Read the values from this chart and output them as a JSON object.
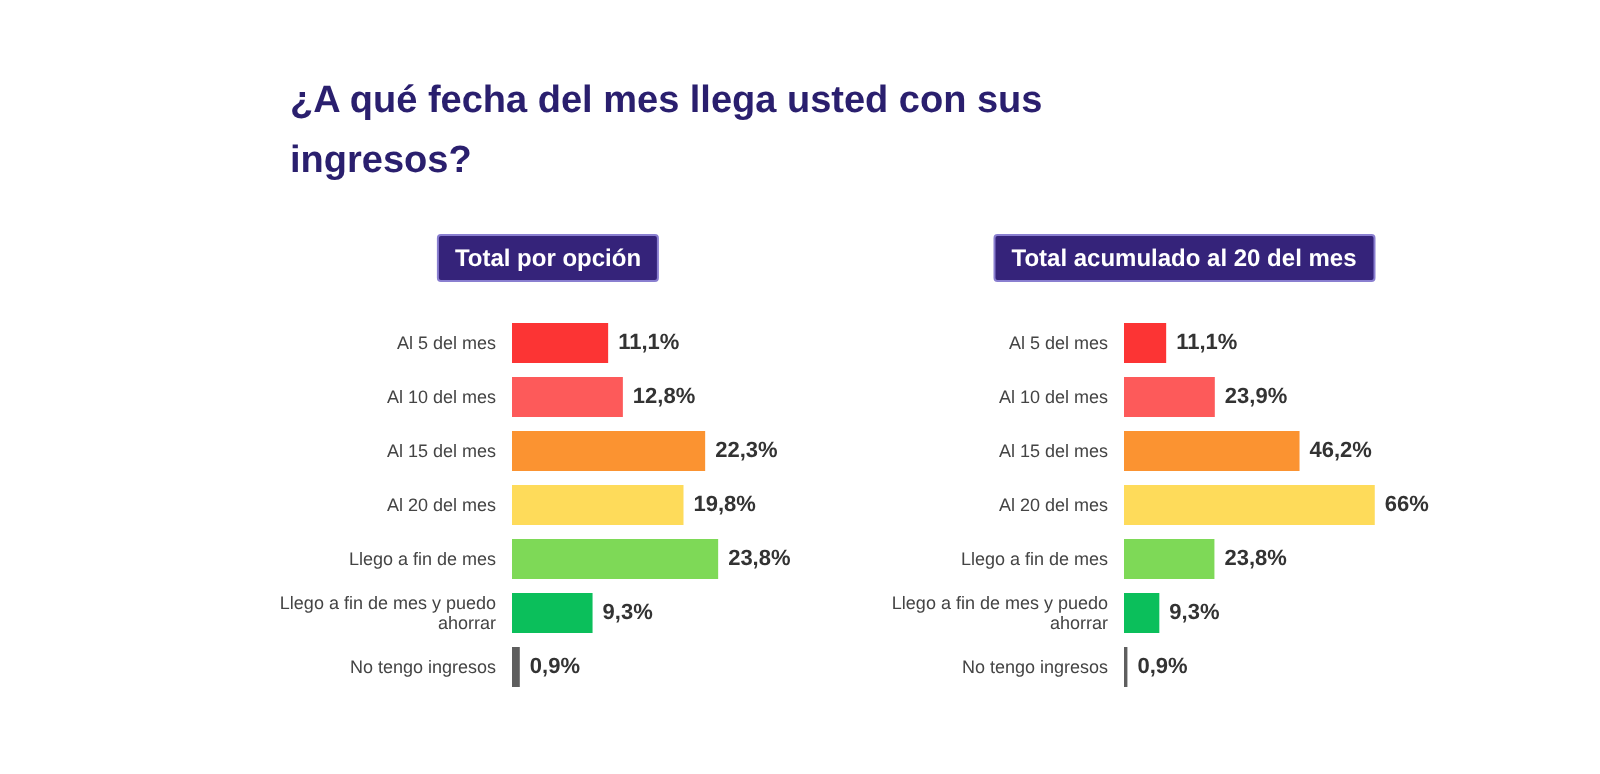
{
  "chart_data": [
    {
      "type": "bar",
      "orientation": "horizontal",
      "title": "¿A qué fecha del mes llega usted con sus ingresos?",
      "subtitle": "Total por opción",
      "categories": [
        "Al 5 del mes",
        "Al 10 del mes",
        "Al 15 del mes",
        "Al 20 del mes",
        "Llego a fin de mes",
        "Llego a fin de mes y puedo ahorrar",
        "No tengo ingresos"
      ],
      "values": [
        11.1,
        12.8,
        22.3,
        19.8,
        23.8,
        9.3,
        0.9
      ],
      "value_labels": [
        "11,1%",
        "12,8%",
        "22,3%",
        "19,8%",
        "23,8%",
        "9,3%",
        "0,9%"
      ],
      "colors": [
        "#fc3434",
        "#fd5a5a",
        "#fb9331",
        "#fedb5a",
        "#7ed957",
        "#0bbf5b",
        "#5e5e5e"
      ]
    },
    {
      "type": "bar",
      "orientation": "horizontal",
      "subtitle": "Total acumulado al 20 del mes",
      "categories": [
        "Al 5 del mes",
        "Al 10 del mes",
        "Al 15 del mes",
        "Al 20 del mes",
        "Llego a fin de mes",
        "Llego a fin de mes y puedo ahorrar",
        "No tengo ingresos"
      ],
      "values": [
        11.1,
        23.9,
        46.2,
        66,
        23.8,
        9.3,
        0.9
      ],
      "value_labels": [
        "11,1%",
        "23,9%",
        "46,2%",
        "66%",
        "23,8%",
        "9,3%",
        "0,9%"
      ],
      "colors": [
        "#fc3434",
        "#fd5a5a",
        "#fb9331",
        "#fedb5a",
        "#7ed957",
        "#0bbf5b",
        "#5e5e5e"
      ]
    }
  ]
}
